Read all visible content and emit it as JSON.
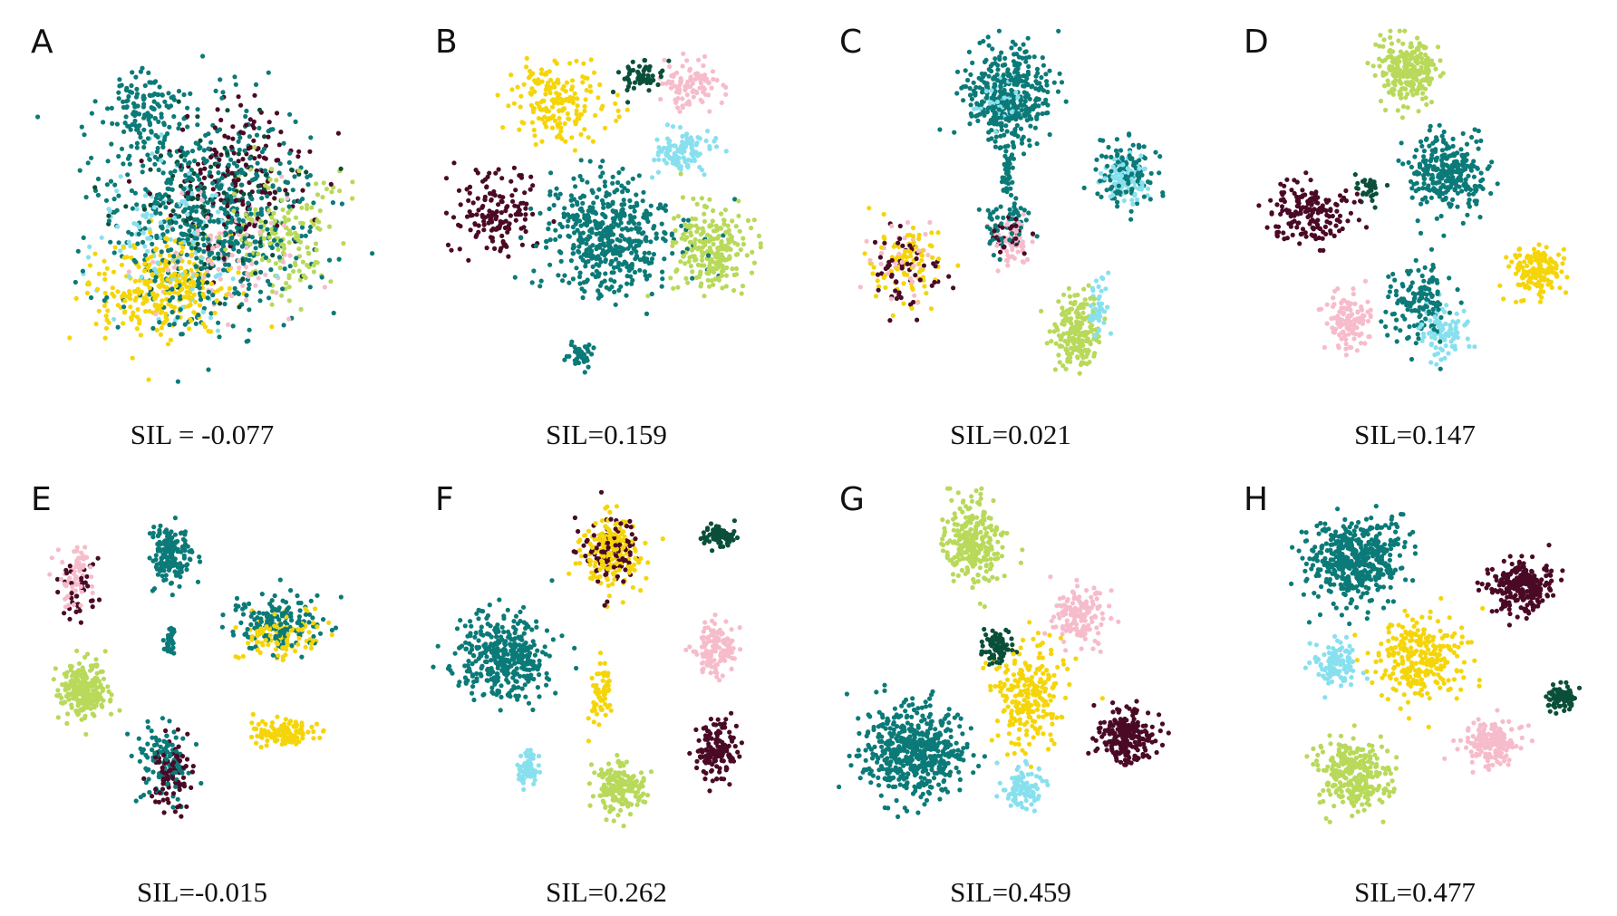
{
  "figure": {
    "description_free": true,
    "point_colors": {
      "teal": "#0b7a78",
      "dark_green": "#0a4f3a",
      "maroon": "#4a0a26",
      "yellow": "#f5d50a",
      "light_green": "#b8d95a",
      "pink": "#f6bccb",
      "cyan": "#88e0ee"
    }
  },
  "chart_data": [
    {
      "type": "scatter",
      "panel": "A",
      "caption": "SIL = -0.077",
      "silhouette": -0.077,
      "x_range": [
        0,
        100
      ],
      "y_range": [
        0,
        100
      ],
      "clusters": [
        {
          "color": "teal",
          "center": [
            50,
            50
          ],
          "spread": [
            26,
            26
          ],
          "count": 650
        },
        {
          "color": "teal",
          "center": [
            32,
            22
          ],
          "spread": [
            10,
            8
          ],
          "count": 120
        },
        {
          "color": "maroon",
          "center": [
            58,
            40
          ],
          "spread": [
            18,
            18
          ],
          "count": 160
        },
        {
          "color": "yellow",
          "center": [
            38,
            68
          ],
          "spread": [
            16,
            12
          ],
          "count": 300
        },
        {
          "color": "light_green",
          "center": [
            70,
            55
          ],
          "spread": [
            14,
            14
          ],
          "count": 160
        },
        {
          "color": "pink",
          "center": [
            55,
            58
          ],
          "spread": [
            16,
            16
          ],
          "count": 90
        },
        {
          "color": "cyan",
          "center": [
            40,
            55
          ],
          "spread": [
            20,
            20
          ],
          "count": 110
        },
        {
          "color": "dark_green",
          "center": [
            52,
            48
          ],
          "spread": [
            22,
            22
          ],
          "count": 110
        }
      ]
    },
    {
      "type": "scatter",
      "panel": "B",
      "caption": "SIL=0.159",
      "silhouette": 0.159,
      "x_range": [
        0,
        100
      ],
      "y_range": [
        0,
        100
      ],
      "clusters": [
        {
          "color": "teal",
          "center": [
            50,
            55
          ],
          "spread": [
            17,
            14
          ],
          "count": 480
        },
        {
          "color": "maroon",
          "center": [
            18,
            48
          ],
          "spread": [
            10,
            10
          ],
          "count": 150
        },
        {
          "color": "yellow",
          "center": [
            35,
            20
          ],
          "spread": [
            12,
            9
          ],
          "count": 190
        },
        {
          "color": "pink",
          "center": [
            72,
            15
          ],
          "spread": [
            8,
            6
          ],
          "count": 100
        },
        {
          "color": "cyan",
          "center": [
            70,
            33
          ],
          "spread": [
            7,
            5
          ],
          "count": 110
        },
        {
          "color": "light_green",
          "center": [
            78,
            58
          ],
          "spread": [
            10,
            10
          ],
          "count": 230
        },
        {
          "color": "dark_green",
          "center": [
            58,
            13
          ],
          "spread": [
            5,
            4
          ],
          "count": 60
        },
        {
          "color": "teal",
          "center": [
            42,
            86
          ],
          "spread": [
            3,
            3
          ],
          "count": 40
        }
      ]
    },
    {
      "type": "scatter",
      "panel": "C",
      "caption": "SIL=0.021",
      "silhouette": 0.021,
      "x_range": [
        0,
        100
      ],
      "y_range": [
        0,
        100
      ],
      "clusters": [
        {
          "color": "teal",
          "center": [
            48,
            18
          ],
          "spread": [
            10,
            12
          ],
          "count": 380
        },
        {
          "color": "teal",
          "center": [
            48,
            38
          ],
          "spread": [
            2,
            6
          ],
          "count": 40
        },
        {
          "color": "cyan",
          "center": [
            46,
            20
          ],
          "spread": [
            6,
            6
          ],
          "count": 40
        },
        {
          "color": "yellow",
          "center": [
            20,
            62
          ],
          "spread": [
            9,
            10
          ],
          "count": 90
        },
        {
          "color": "maroon",
          "center": [
            19,
            63
          ],
          "spread": [
            9,
            10
          ],
          "count": 60
        },
        {
          "color": "pink",
          "center": [
            18,
            60
          ],
          "spread": [
            8,
            9
          ],
          "count": 30
        },
        {
          "color": "teal",
          "center": [
            47,
            52
          ],
          "spread": [
            7,
            7
          ],
          "count": 60
        },
        {
          "color": "pink",
          "center": [
            50,
            56
          ],
          "spread": [
            5,
            5
          ],
          "count": 60
        },
        {
          "color": "maroon",
          "center": [
            48,
            55
          ],
          "spread": [
            5,
            5
          ],
          "count": 30
        },
        {
          "color": "teal",
          "center": [
            80,
            38
          ],
          "spread": [
            8,
            8
          ],
          "count": 120
        },
        {
          "color": "cyan",
          "center": [
            81,
            40
          ],
          "spread": [
            5,
            5
          ],
          "count": 100
        },
        {
          "color": "light_green",
          "center": [
            67,
            80
          ],
          "spread": [
            6,
            9
          ],
          "count": 200
        },
        {
          "color": "cyan",
          "center": [
            73,
            74
          ],
          "spread": [
            3,
            8
          ],
          "count": 40
        }
      ]
    },
    {
      "type": "scatter",
      "panel": "D",
      "caption": "SIL=0.147",
      "silhouette": 0.147,
      "x_range": [
        0,
        100
      ],
      "y_range": [
        0,
        100
      ],
      "clusters": [
        {
          "color": "light_green",
          "center": [
            47,
            12
          ],
          "spread": [
            7,
            8
          ],
          "count": 240
        },
        {
          "color": "teal",
          "center": [
            58,
            38
          ],
          "spread": [
            9,
            9
          ],
          "count": 280
        },
        {
          "color": "maroon",
          "center": [
            20,
            49
          ],
          "spread": [
            10,
            7
          ],
          "count": 170
        },
        {
          "color": "yellow",
          "center": [
            82,
            64
          ],
          "spread": [
            7,
            6
          ],
          "count": 150
        },
        {
          "color": "pink",
          "center": [
            30,
            77
          ],
          "spread": [
            6,
            7
          ],
          "count": 120
        },
        {
          "color": "cyan",
          "center": [
            56,
            80
          ],
          "spread": [
            6,
            7
          ],
          "count": 90
        },
        {
          "color": "teal",
          "center": [
            50,
            72
          ],
          "spread": [
            8,
            10
          ],
          "count": 140
        },
        {
          "color": "dark_green",
          "center": [
            36,
            42
          ],
          "spread": [
            3,
            3
          ],
          "count": 30
        }
      ]
    },
    {
      "type": "scatter",
      "panel": "E",
      "caption": "SIL=-0.015",
      "silhouette": -0.015,
      "x_range": [
        0,
        100
      ],
      "y_range": [
        0,
        100
      ],
      "clusters": [
        {
          "color": "teal",
          "center": [
            40,
            18
          ],
          "spread": [
            5,
            7
          ],
          "count": 180
        },
        {
          "color": "pink",
          "center": [
            14,
            25
          ],
          "spread": [
            5,
            8
          ],
          "count": 70
        },
        {
          "color": "maroon",
          "center": [
            15,
            28
          ],
          "spread": [
            5,
            8
          ],
          "count": 40
        },
        {
          "color": "teal",
          "center": [
            70,
            37
          ],
          "spread": [
            11,
            7
          ],
          "count": 170
        },
        {
          "color": "yellow",
          "center": [
            70,
            39
          ],
          "spread": [
            11,
            6
          ],
          "count": 100
        },
        {
          "color": "light_green",
          "center": [
            16,
            54
          ],
          "spread": [
            6,
            7
          ],
          "count": 230
        },
        {
          "color": "teal",
          "center": [
            38,
            73
          ],
          "spread": [
            6,
            9
          ],
          "count": 120
        },
        {
          "color": "maroon",
          "center": [
            40,
            76
          ],
          "spread": [
            5,
            9
          ],
          "count": 100
        },
        {
          "color": "yellow",
          "center": [
            71,
            65
          ],
          "spread": [
            8,
            3
          ],
          "count": 130
        },
        {
          "color": "teal",
          "center": [
            40,
            42
          ],
          "spread": [
            1.5,
            4
          ],
          "count": 30
        }
      ]
    },
    {
      "type": "scatter",
      "panel": "F",
      "caption": "SIL=0.262",
      "silhouette": 0.262,
      "x_range": [
        0,
        100
      ],
      "y_range": [
        0,
        100
      ],
      "clusters": [
        {
          "color": "teal",
          "center": [
            20,
            45
          ],
          "spread": [
            11,
            10
          ],
          "count": 380
        },
        {
          "color": "yellow",
          "center": [
            50,
            18
          ],
          "spread": [
            8,
            9
          ],
          "count": 200
        },
        {
          "color": "maroon",
          "center": [
            50,
            17
          ],
          "spread": [
            7,
            9
          ],
          "count": 110
        },
        {
          "color": "dark_green",
          "center": [
            80,
            13
          ],
          "spread": [
            4,
            3
          ],
          "count": 80
        },
        {
          "color": "pink",
          "center": [
            79,
            43
          ],
          "spread": [
            5,
            6
          ],
          "count": 130
        },
        {
          "color": "maroon",
          "center": [
            79,
            70
          ],
          "spread": [
            5,
            7
          ],
          "count": 150
        },
        {
          "color": "light_green",
          "center": [
            53,
            80
          ],
          "spread": [
            6,
            6
          ],
          "count": 180
        },
        {
          "color": "cyan",
          "center": [
            27,
            75
          ],
          "spread": [
            3,
            4
          ],
          "count": 60
        },
        {
          "color": "yellow",
          "center": [
            47,
            55
          ],
          "spread": [
            2.5,
            8
          ],
          "count": 60
        }
      ]
    },
    {
      "type": "scatter",
      "panel": "G",
      "caption": "SIL=0.459",
      "silhouette": 0.459,
      "x_range": [
        0,
        100
      ],
      "y_range": [
        0,
        100
      ],
      "clusters": [
        {
          "color": "light_green",
          "center": [
            38,
            15
          ],
          "spread": [
            7,
            10
          ],
          "count": 260
        },
        {
          "color": "teal",
          "center": [
            22,
            70
          ],
          "spread": [
            13,
            11
          ],
          "count": 520
        },
        {
          "color": "yellow",
          "center": [
            54,
            55
          ],
          "spread": [
            9,
            11
          ],
          "count": 240
        },
        {
          "color": "pink",
          "center": [
            68,
            34
          ],
          "spread": [
            6,
            7
          ],
          "count": 150
        },
        {
          "color": "dark_green",
          "center": [
            45,
            43
          ],
          "spread": [
            4,
            4
          ],
          "count": 80
        },
        {
          "color": "maroon",
          "center": [
            80,
            66
          ],
          "spread": [
            7,
            7
          ],
          "count": 230
        },
        {
          "color": "cyan",
          "center": [
            52,
            80
          ],
          "spread": [
            5,
            5
          ],
          "count": 90
        }
      ]
    },
    {
      "type": "scatter",
      "panel": "H",
      "caption": "SIL=0.477",
      "silhouette": 0.477,
      "x_range": [
        0,
        100
      ],
      "y_range": [
        0,
        100
      ],
      "clusters": [
        {
          "color": "teal",
          "center": [
            32,
            20
          ],
          "spread": [
            12,
            10
          ],
          "count": 460
        },
        {
          "color": "maroon",
          "center": [
            78,
            27
          ],
          "spread": [
            8,
            6
          ],
          "count": 260
        },
        {
          "color": "yellow",
          "center": [
            50,
            45
          ],
          "spread": [
            11,
            10
          ],
          "count": 260
        },
        {
          "color": "cyan",
          "center": [
            27,
            47
          ],
          "spread": [
            5,
            5
          ],
          "count": 120
        },
        {
          "color": "dark_green",
          "center": [
            89,
            56
          ],
          "spread": [
            4,
            3
          ],
          "count": 80
        },
        {
          "color": "pink",
          "center": [
            70,
            68
          ],
          "spread": [
            7,
            6
          ],
          "count": 170
        },
        {
          "color": "light_green",
          "center": [
            32,
            76
          ],
          "spread": [
            9,
            8
          ],
          "count": 290
        }
      ]
    }
  ]
}
